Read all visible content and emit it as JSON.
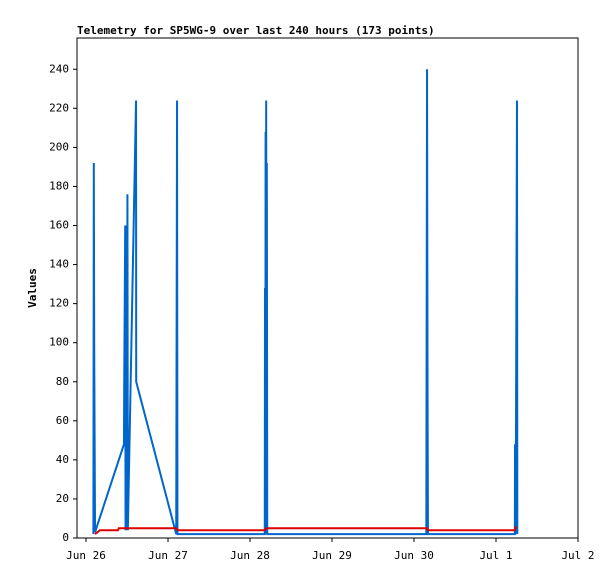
{
  "chart_data": {
    "type": "line",
    "title": "Telemetry for SP5WG-9 over last 240 hours (173 points)",
    "y_label": "Values",
    "xlim": [
      -0.11,
      6.0
    ],
    "xticks": [
      {
        "value": 0,
        "label": "Jun 26"
      },
      {
        "value": 1,
        "label": "Jun 27"
      },
      {
        "value": 2,
        "label": "Jun 28"
      },
      {
        "value": 3,
        "label": "Jun 29"
      },
      {
        "value": 4,
        "label": "Jun 30"
      },
      {
        "value": 5,
        "label": "Jul 1"
      },
      {
        "value": 6,
        "label": "Jul 2"
      }
    ],
    "ylim": [
      0,
      256
    ],
    "yticks": [
      0,
      20,
      40,
      60,
      80,
      100,
      120,
      140,
      160,
      180,
      200,
      220,
      240
    ],
    "series": [
      {
        "color": "#0066cc",
        "x": [
          0.09,
          0.095,
          0.1,
          0.11,
          0.463,
          0.466,
          0.478,
          0.482,
          0.49,
          0.495,
          0.505,
          0.51,
          0.61,
          0.612,
          1.1,
          1.11,
          1.115,
          2.18,
          2.183,
          2.187,
          2.19,
          2.194,
          2.197,
          2.202,
          2.205,
          2.21,
          4.15,
          4.159,
          4.165,
          4.17,
          5.23,
          5.232,
          5.24,
          5.256,
          5.26
        ],
        "values": [
          2,
          192,
          97,
          3,
          48,
          80,
          160,
          4,
          160,
          4,
          176,
          4,
          224,
          80,
          2,
          224,
          2,
          2,
          128,
          2,
          208,
          2,
          224,
          2,
          192,
          2,
          2,
          240,
          80,
          2,
          2,
          48,
          2,
          224,
          2
        ]
      },
      {
        "color": "#dd0000",
        "x": [
          0.11,
          0.17,
          0.39,
          0.4,
          1.1,
          1.12,
          2.18,
          2.2,
          4.16,
          4.17,
          5.23,
          5.24
        ],
        "values": [
          2,
          4,
          4,
          5,
          5,
          4,
          4,
          5,
          5,
          4,
          4,
          6
        ]
      }
    ]
  }
}
